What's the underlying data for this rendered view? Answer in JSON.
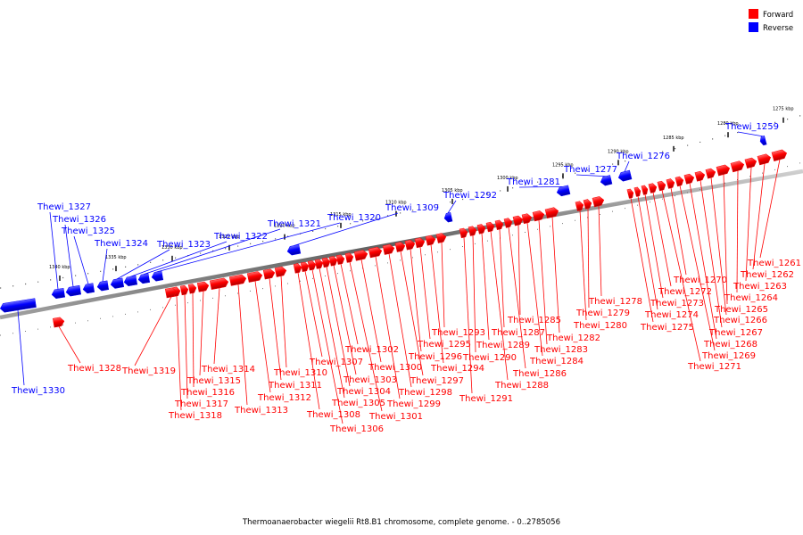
{
  "caption": "Thermoanaerobacter wiegelii Rt8.B1 chromosome, complete genome. - 0..2785056",
  "legend": [
    {
      "label": "Forward",
      "color": "#ff0000"
    },
    {
      "label": "Reverse",
      "color": "#0000ff"
    }
  ],
  "ticks": [
    "1275 kbp",
    "1280 kbp",
    "1285 kbp",
    "1290 kbp",
    "1295 kbp",
    "1300 kbp",
    "1305 kbp",
    "1310 kbp",
    "1315 kbp",
    "1320 kbp",
    "1325 kbp",
    "1330 kbp",
    "1335 kbp",
    "1340 kbp"
  ],
  "genes": [
    {
      "name": "Thewi_1259",
      "strand": "reverse"
    },
    {
      "name": "Thewi_1261",
      "strand": "forward"
    },
    {
      "name": "Thewi_1262",
      "strand": "forward"
    },
    {
      "name": "Thewi_1263",
      "strand": "forward"
    },
    {
      "name": "Thewi_1264",
      "strand": "forward"
    },
    {
      "name": "Thewi_1265",
      "strand": "forward"
    },
    {
      "name": "Thewi_1266",
      "strand": "forward"
    },
    {
      "name": "Thewi_1267",
      "strand": "forward"
    },
    {
      "name": "Thewi_1268",
      "strand": "forward"
    },
    {
      "name": "Thewi_1269",
      "strand": "forward"
    },
    {
      "name": "Thewi_1270",
      "strand": "forward"
    },
    {
      "name": "Thewi_1271",
      "strand": "forward"
    },
    {
      "name": "Thewi_1272",
      "strand": "forward"
    },
    {
      "name": "Thewi_1273",
      "strand": "forward"
    },
    {
      "name": "Thewi_1274",
      "strand": "forward"
    },
    {
      "name": "Thewi_1275",
      "strand": "forward"
    },
    {
      "name": "Thewi_1276",
      "strand": "reverse"
    },
    {
      "name": "Thewi_1277",
      "strand": "reverse"
    },
    {
      "name": "Thewi_1278",
      "strand": "forward"
    },
    {
      "name": "Thewi_1279",
      "strand": "forward"
    },
    {
      "name": "Thewi_1280",
      "strand": "forward"
    },
    {
      "name": "Thewi_1281",
      "strand": "reverse"
    },
    {
      "name": "Thewi_1282",
      "strand": "forward"
    },
    {
      "name": "Thewi_1283",
      "strand": "forward"
    },
    {
      "name": "Thewi_1284",
      "strand": "forward"
    },
    {
      "name": "Thewi_1285",
      "strand": "forward"
    },
    {
      "name": "Thewi_1286",
      "strand": "forward"
    },
    {
      "name": "Thewi_1287",
      "strand": "forward"
    },
    {
      "name": "Thewi_1288",
      "strand": "forward"
    },
    {
      "name": "Thewi_1289",
      "strand": "forward"
    },
    {
      "name": "Thewi_1290",
      "strand": "forward"
    },
    {
      "name": "Thewi_1291",
      "strand": "forward"
    },
    {
      "name": "Thewi_1292",
      "strand": "reverse"
    },
    {
      "name": "Thewi_1293",
      "strand": "forward"
    },
    {
      "name": "Thewi_1294",
      "strand": "forward"
    },
    {
      "name": "Thewi_1295",
      "strand": "forward"
    },
    {
      "name": "Thewi_1296",
      "strand": "forward"
    },
    {
      "name": "Thewi_1297",
      "strand": "forward"
    },
    {
      "name": "Thewi_1298",
      "strand": "forward"
    },
    {
      "name": "Thewi_1299",
      "strand": "forward"
    },
    {
      "name": "Thewi_1300",
      "strand": "forward"
    },
    {
      "name": "Thewi_1301",
      "strand": "forward"
    },
    {
      "name": "Thewi_1302",
      "strand": "forward"
    },
    {
      "name": "Thewi_1303",
      "strand": "forward"
    },
    {
      "name": "Thewi_1304",
      "strand": "forward"
    },
    {
      "name": "Thewi_1305",
      "strand": "forward"
    },
    {
      "name": "Thewi_1306",
      "strand": "forward"
    },
    {
      "name": "Thewi_1307",
      "strand": "forward"
    },
    {
      "name": "Thewi_1308",
      "strand": "forward"
    },
    {
      "name": "Thewi_1309",
      "strand": "reverse"
    },
    {
      "name": "Thewi_1310",
      "strand": "forward"
    },
    {
      "name": "Thewi_1311",
      "strand": "forward"
    },
    {
      "name": "Thewi_1312",
      "strand": "forward"
    },
    {
      "name": "Thewi_1313",
      "strand": "forward"
    },
    {
      "name": "Thewi_1314",
      "strand": "forward"
    },
    {
      "name": "Thewi_1315",
      "strand": "forward"
    },
    {
      "name": "Thewi_1316",
      "strand": "forward"
    },
    {
      "name": "Thewi_1317",
      "strand": "forward"
    },
    {
      "name": "Thewi_1318",
      "strand": "forward"
    },
    {
      "name": "Thewi_1319",
      "strand": "forward"
    },
    {
      "name": "Thewi_1320",
      "strand": "reverse"
    },
    {
      "name": "Thewi_1321",
      "strand": "reverse"
    },
    {
      "name": "Thewi_1322",
      "strand": "reverse"
    },
    {
      "name": "Thewi_1323",
      "strand": "reverse"
    },
    {
      "name": "Thewi_1324",
      "strand": "reverse"
    },
    {
      "name": "Thewi_1325",
      "strand": "reverse"
    },
    {
      "name": "Thewi_1326",
      "strand": "reverse"
    },
    {
      "name": "Thewi_1327",
      "strand": "reverse"
    },
    {
      "name": "Thewi_1328",
      "strand": "forward"
    },
    {
      "name": "Thewi_1330",
      "strand": "reverse"
    }
  ]
}
